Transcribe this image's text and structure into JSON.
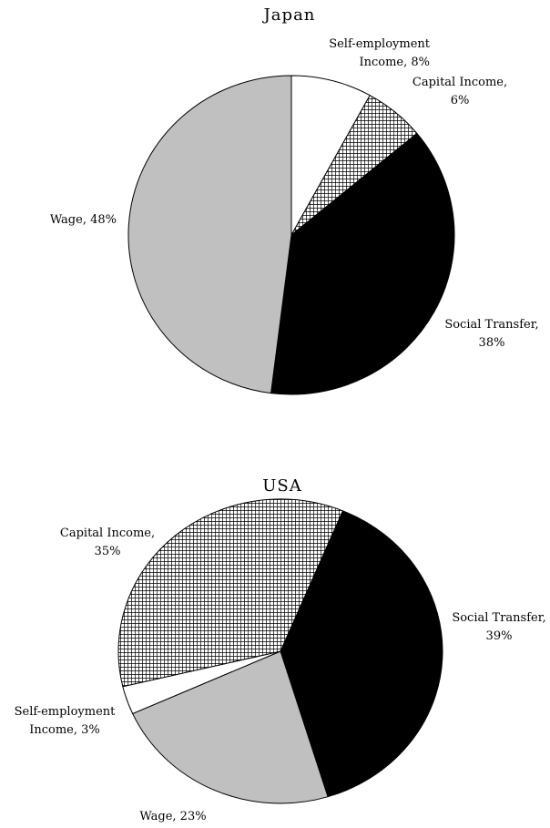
{
  "chart_data": [
    {
      "type": "pie",
      "title": "Japan",
      "values": [
        8,
        6,
        38,
        48
      ],
      "value_labels": [
        "Self-employment\nIncome, 8%",
        "Capital Income,\n6%",
        "Social Transfer,\n38%",
        "Wage, 48%"
      ],
      "colors": [
        "#ffffff",
        "crosshatch",
        "#000000",
        "#c0c0c0"
      ]
    },
    {
      "type": "pie",
      "title": "USA",
      "values": [
        39,
        23,
        3,
        35
      ],
      "value_labels": [
        "Social Transfer,\n39%",
        "Wage, 23%",
        "Self-employment\nIncome, 3%",
        "Capital Income,\n35%"
      ],
      "colors": [
        "#000000",
        "#c0c0c0",
        "#ffffff",
        "crosshatch"
      ]
    }
  ]
}
